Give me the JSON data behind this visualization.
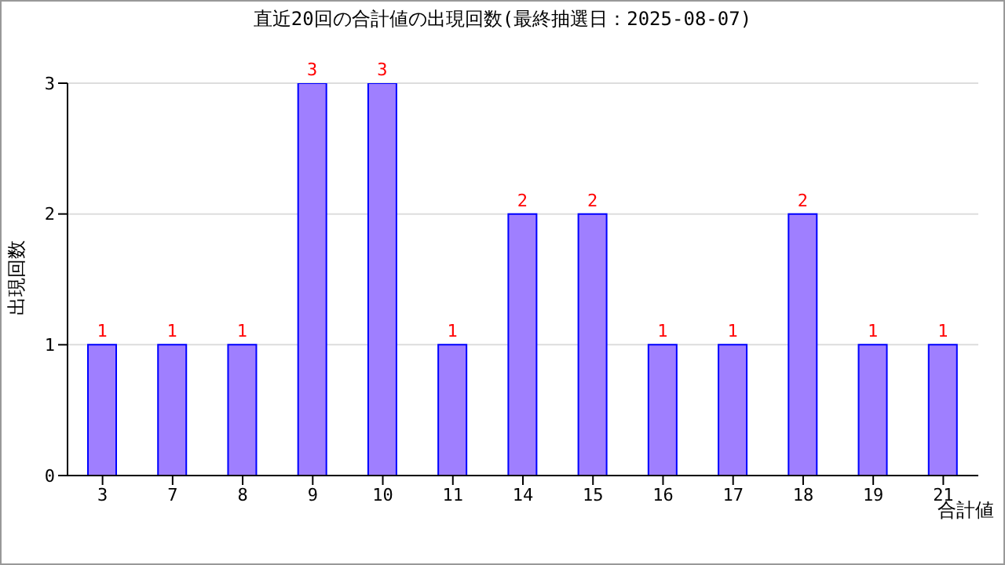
{
  "chart_data": {
    "type": "bar",
    "title": "直近20回の合計値の出現回数(最終抽選日：2025-08-07)",
    "xlabel": "合計値",
    "ylabel": "出現回数",
    "categories": [
      "3",
      "7",
      "8",
      "9",
      "10",
      "11",
      "14",
      "15",
      "16",
      "17",
      "18",
      "19",
      "21"
    ],
    "values": [
      1,
      1,
      1,
      3,
      3,
      1,
      2,
      2,
      1,
      1,
      2,
      1,
      1
    ],
    "color": "#9f7fff",
    "ylim": [
      0,
      3
    ],
    "yticks": [
      0,
      1,
      2,
      3
    ],
    "grid": "y",
    "data_labels": true
  }
}
